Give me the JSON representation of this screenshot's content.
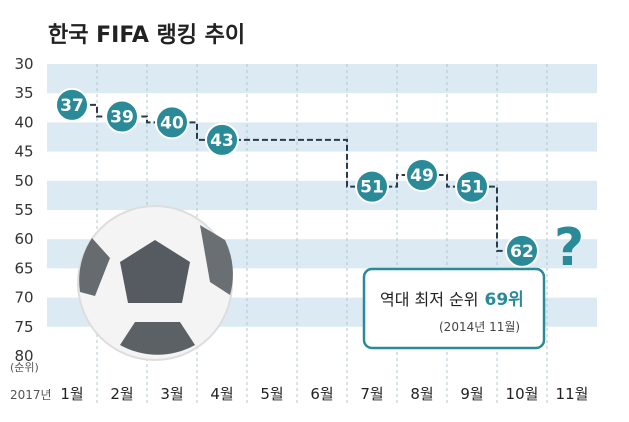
{
  "chart_data": {
    "type": "line",
    "title": "한국 FIFA 랭킹 추이",
    "y_unit": "(순위)",
    "x_prefix": "2017년",
    "categories": [
      "1월",
      "2월",
      "3월",
      "4월",
      "5월",
      "6월",
      "7월",
      "8월",
      "9월",
      "10월",
      "11월"
    ],
    "series": [
      {
        "values": [
          37,
          39,
          40,
          43,
          43,
          43,
          51,
          49,
          51,
          62,
          null
        ]
      }
    ],
    "point_labels": [
      "37",
      "39",
      "40",
      "43",
      "",
      "",
      "51",
      "49",
      "51",
      "62",
      ""
    ],
    "pending_marker": "?",
    "ylim": [
      30,
      80
    ],
    "y_inverted": true,
    "yticks": [
      "30",
      "35",
      "40",
      "45",
      "50",
      "55",
      "60",
      "65",
      "70",
      "75",
      "80"
    ],
    "line_style": "step",
    "grid": true,
    "colors": {
      "accent": "#2a8a98",
      "band": "#dcebf3",
      "line": "#2b3a4a"
    },
    "annotation": {
      "main": "역대 최저 순위",
      "highlight": "69위",
      "sub": "(2014년 11월)"
    },
    "background_image": "soccer-ball"
  }
}
